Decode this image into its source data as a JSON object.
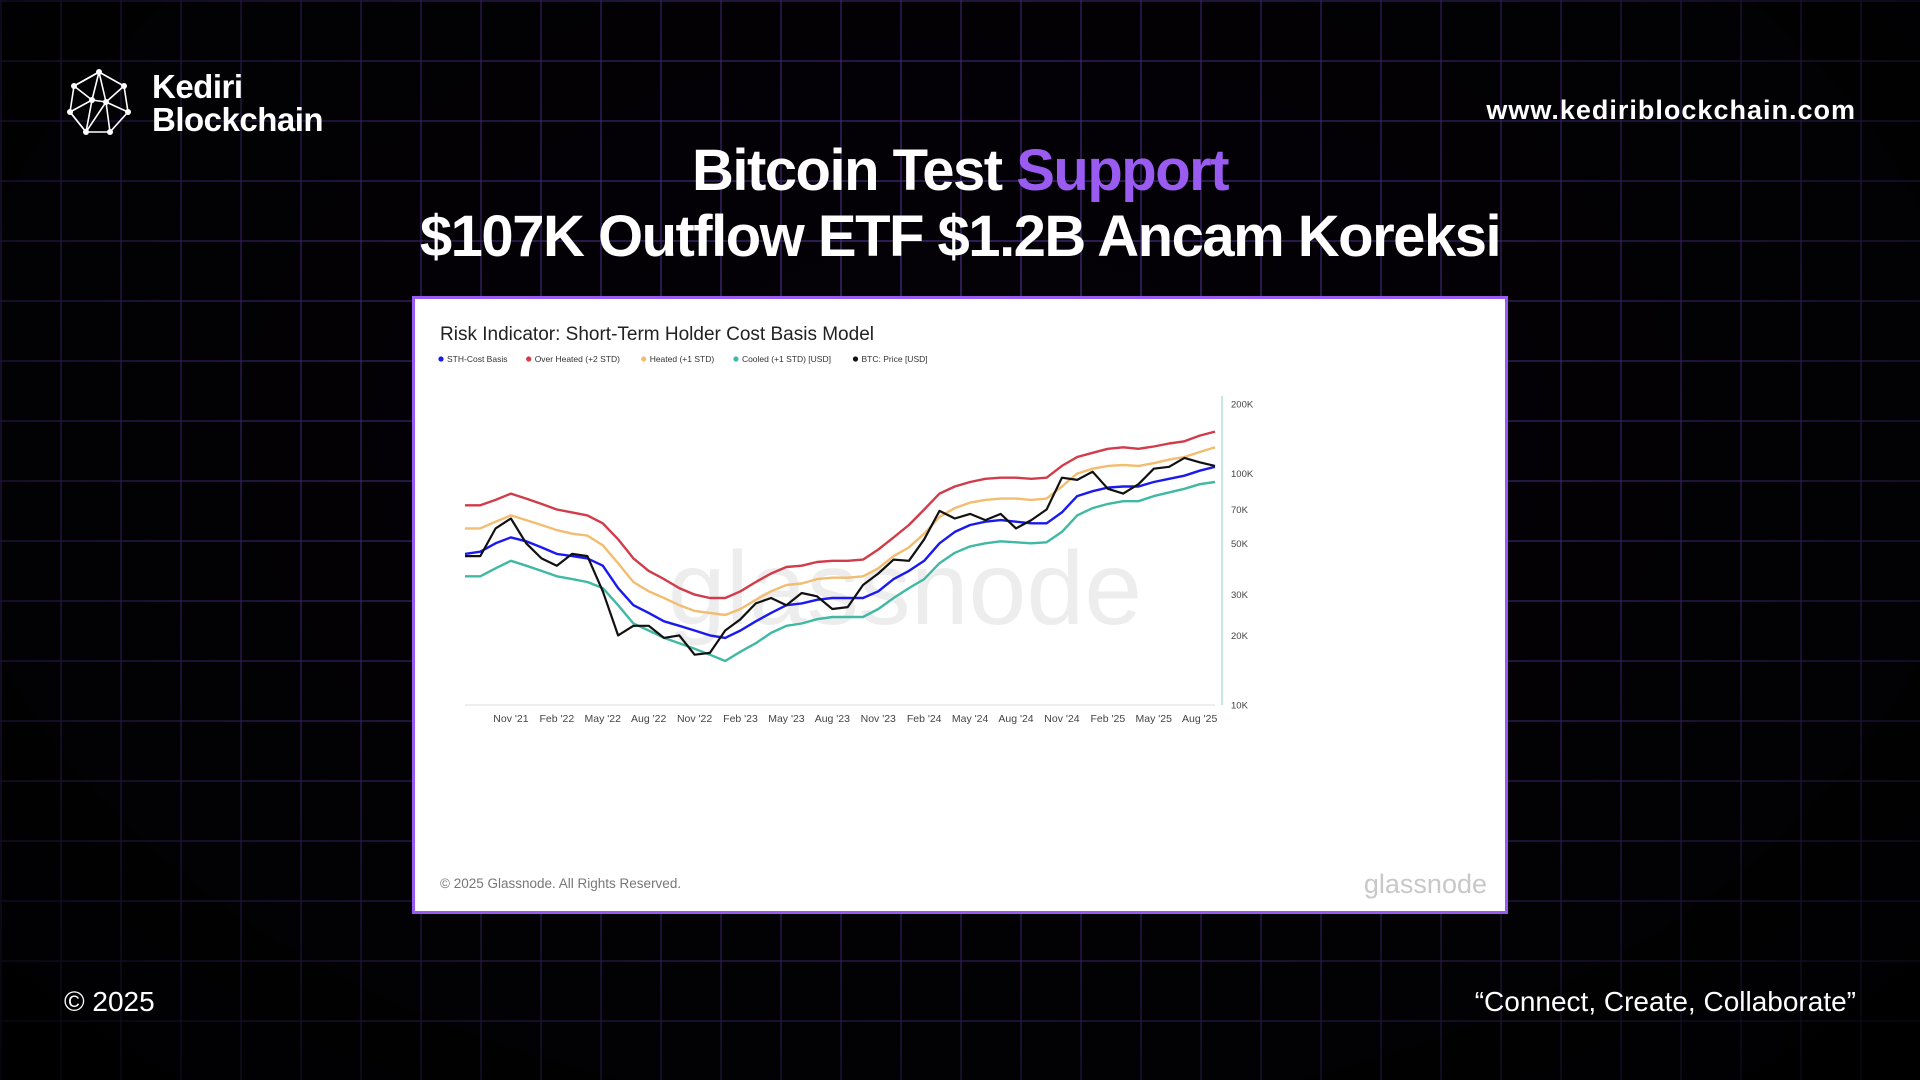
{
  "brand": {
    "name_line1": "Kediri",
    "name_line2": "Blockchain",
    "website": "www.kediriblockchain.com"
  },
  "headline": {
    "line1_part1": "Bitcoin Test ",
    "line1_accent": "Support",
    "line2": "$107K Outflow ETF $1.2B Ancam Koreksi"
  },
  "footer": {
    "copyright": "© 2025",
    "tagline": "“Connect, Create, Collaborate”"
  },
  "colors": {
    "accent": "#9a5cf0",
    "background": "#050208",
    "grid": "#6e46c8"
  },
  "icons": {
    "logo": "network-sphere-icon"
  },
  "chart_data": {
    "type": "line",
    "title": "Risk Indicator: Short-Term Holder Cost Basis Model",
    "copyright": "© 2025 Glassnode. All Rights Reserved.",
    "watermark": "glassnode",
    "y_scale": "log",
    "ylim": [
      10000,
      200000
    ],
    "y_ticks": [
      10000,
      20000,
      30000,
      50000,
      70000,
      100000,
      200000
    ],
    "y_tick_labels": [
      "10K",
      "20K",
      "30K",
      "50K",
      "70K",
      "100K",
      "200K"
    ],
    "x_tick_labels": [
      "Nov '21",
      "Feb '22",
      "May '22",
      "Aug '22",
      "Nov '22",
      "Feb '23",
      "May '23",
      "Aug '23",
      "Nov '23",
      "Feb '24",
      "May '24",
      "Aug '24",
      "Nov '24",
      "Feb '25",
      "May '25",
      "Aug '25"
    ],
    "x_tick_dates": [
      "2021-11",
      "2022-02",
      "2022-05",
      "2022-08",
      "2022-11",
      "2023-02",
      "2023-05",
      "2023-08",
      "2023-11",
      "2024-02",
      "2024-05",
      "2024-08",
      "2024-11",
      "2025-02",
      "2025-05",
      "2025-08"
    ],
    "x_range": [
      "2021-08",
      "2025-09"
    ],
    "legend_position": "top-left",
    "dates": [
      "2021-08",
      "2021-09",
      "2021-10",
      "2021-11",
      "2021-12",
      "2022-01",
      "2022-02",
      "2022-03",
      "2022-04",
      "2022-05",
      "2022-06",
      "2022-07",
      "2022-08",
      "2022-09",
      "2022-10",
      "2022-11",
      "2022-12",
      "2023-01",
      "2023-02",
      "2023-03",
      "2023-04",
      "2023-05",
      "2023-06",
      "2023-07",
      "2023-08",
      "2023-09",
      "2023-10",
      "2023-11",
      "2023-12",
      "2024-01",
      "2024-02",
      "2024-03",
      "2024-04",
      "2024-05",
      "2024-06",
      "2024-07",
      "2024-08",
      "2024-09",
      "2024-10",
      "2024-11",
      "2024-12",
      "2025-01",
      "2025-02",
      "2025-03",
      "2025-04",
      "2025-05",
      "2025-06",
      "2025-07",
      "2025-08",
      "2025-09"
    ],
    "series": [
      {
        "name": "STH-Cost Basis",
        "color": "#1a1af0",
        "values": [
          45000,
          46000,
          50000,
          53000,
          51000,
          48000,
          45000,
          44000,
          43000,
          40000,
          32000,
          27000,
          25000,
          23000,
          22000,
          21000,
          20000,
          19500,
          21000,
          23000,
          25000,
          27000,
          27500,
          28500,
          29000,
          29000,
          29000,
          31000,
          35000,
          38000,
          42000,
          50000,
          56000,
          60000,
          62000,
          63000,
          62000,
          61000,
          61000,
          68000,
          80000,
          84000,
          87000,
          88000,
          88000,
          92000,
          95000,
          98000,
          103000,
          107000
        ]
      },
      {
        "name": "Over Heated (+2 STD)",
        "color": "#d23b4a",
        "values": [
          73000,
          73000,
          77000,
          82000,
          78000,
          74000,
          70000,
          68000,
          66000,
          61000,
          52000,
          43000,
          38000,
          35000,
          32000,
          30000,
          29000,
          29000,
          31000,
          34000,
          37000,
          39500,
          40000,
          41500,
          42000,
          42000,
          42500,
          47000,
          53000,
          60000,
          70000,
          82000,
          88000,
          92000,
          95000,
          96000,
          96000,
          95000,
          96000,
          108000,
          118000,
          123000,
          128000,
          130000,
          128000,
          131000,
          135000,
          138000,
          146000,
          152000
        ]
      },
      {
        "name": "Heated (+1 STD)",
        "color": "#f2bd70",
        "values": [
          58000,
          58000,
          62000,
          66000,
          63000,
          60000,
          57000,
          55000,
          54000,
          49000,
          41000,
          34000,
          31000,
          29000,
          27000,
          25500,
          25000,
          24500,
          26000,
          28500,
          31000,
          33000,
          33500,
          35000,
          35500,
          35500,
          36000,
          39000,
          44000,
          48000,
          55000,
          65000,
          71000,
          75000,
          77000,
          78000,
          78000,
          77000,
          78000,
          88000,
          100000,
          105000,
          108000,
          109000,
          108000,
          111000,
          115000,
          118000,
          124000,
          130000
        ]
      },
      {
        "name": "Cooled (+1 STD) [USD]",
        "color": "#3fb9a4",
        "values": [
          36000,
          36000,
          39000,
          42000,
          40000,
          38000,
          36000,
          35000,
          34000,
          32000,
          27000,
          22500,
          21000,
          19500,
          18500,
          17500,
          16500,
          15500,
          17000,
          18500,
          20500,
          22000,
          22500,
          23500,
          24000,
          24000,
          24000,
          26000,
          29000,
          32000,
          35000,
          41000,
          45500,
          48500,
          50000,
          51000,
          50500,
          50000,
          50500,
          56000,
          66000,
          71000,
          74000,
          76000,
          76000,
          80000,
          83000,
          86000,
          90000,
          92000
        ]
      },
      {
        "name": "BTC: Price [USD]",
        "color": "#111111",
        "values": [
          44000,
          44000,
          58000,
          64000,
          50000,
          43000,
          40000,
          45000,
          44000,
          31000,
          20000,
          22000,
          22000,
          19500,
          20000,
          16500,
          16800,
          21000,
          23500,
          27500,
          29000,
          27000,
          30500,
          29500,
          26000,
          26500,
          33000,
          37000,
          42500,
          42000,
          52000,
          69000,
          64000,
          67000,
          63000,
          67000,
          58000,
          63000,
          70000,
          96000,
          94000,
          102000,
          86000,
          82000,
          90000,
          105000,
          107000,
          117000,
          112000,
          108000
        ]
      }
    ]
  }
}
